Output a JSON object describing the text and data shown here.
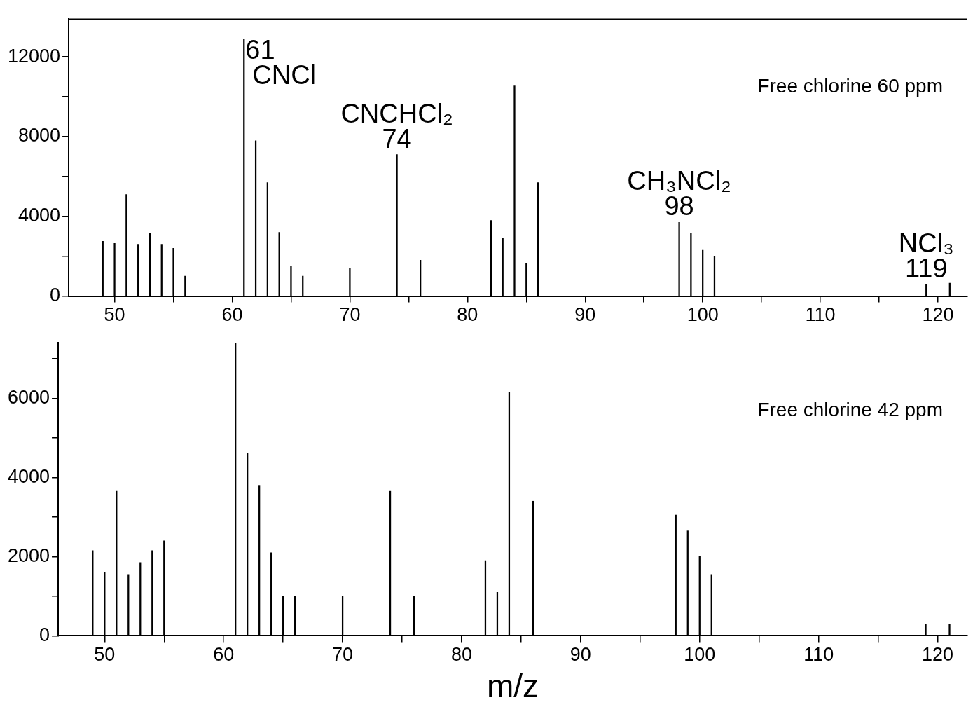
{
  "chart_data": [
    {
      "type": "bar",
      "xlim": [
        46.1,
        122.5
      ],
      "ylim": [
        0,
        13900
      ],
      "xticks": [
        50,
        {
          "value": 55,
          "label": null
        },
        60,
        {
          "value": 65,
          "label": null
        },
        70,
        {
          "value": 75,
          "label": null
        },
        80,
        {
          "value": 85,
          "label": null
        },
        90,
        {
          "value": 95,
          "label": null
        },
        100,
        {
          "value": 105,
          "label": null
        },
        110,
        {
          "value": 115,
          "label": null
        },
        120
      ],
      "yticks": [
        0,
        {
          "value": 2000,
          "label": null
        },
        4000,
        {
          "value": 6000,
          "label": null
        },
        8000,
        {
          "value": 10000,
          "label": null
        },
        12000
      ],
      "x": [
        49,
        50,
        51,
        52,
        53,
        54,
        55,
        56,
        61,
        62,
        63,
        64,
        65,
        66,
        70,
        74,
        76,
        82,
        83,
        84,
        85,
        86,
        98,
        99,
        100,
        101,
        119,
        121
      ],
      "series": [
        {
          "color": "#000000",
          "values": [
            2750,
            2650,
            5100,
            2600,
            3150,
            2600,
            2400,
            1000,
            12900,
            7800,
            5700,
            3200,
            1500,
            1000,
            1400,
            7100,
            1800,
            3800,
            2900,
            10550,
            1650,
            5700,
            3700,
            3150,
            2300,
            2000,
            600,
            650
          ]
        }
      ],
      "annotations": [
        "Free chlorine 60 ppm",
        {
          "text": "61\nCNCl",
          "x": 61,
          "y": 12900
        },
        {
          "text": "CNCHCl₂\n74",
          "x": 74,
          "y": 7100
        },
        {
          "text": "CH₃NCl₂\n98",
          "x": 98,
          "y": 3700
        },
        {
          "text": "NCl₃\n119",
          "x": 119,
          "y": 600
        }
      ]
    },
    {
      "type": "bar",
      "xlabel": "m/z",
      "xlim": [
        46.1,
        122.5
      ],
      "ylim": [
        0,
        7400
      ],
      "xticks": [
        50,
        {
          "value": 55,
          "label": null
        },
        60,
        {
          "value": 65,
          "label": null
        },
        70,
        {
          "value": 75,
          "label": null
        },
        80,
        {
          "value": 85,
          "label": null
        },
        90,
        {
          "value": 95,
          "label": null
        },
        100,
        {
          "value": 105,
          "label": null
        },
        110,
        {
          "value": 115,
          "label": null
        },
        120
      ],
      "yticks": [
        0,
        {
          "value": 1000,
          "label": null
        },
        2000,
        {
          "value": 3000,
          "label": null
        },
        4000,
        {
          "value": 5000,
          "label": null
        },
        6000,
        {
          "value": 7000,
          "label": null
        }
      ],
      "x": [
        49,
        50,
        51,
        52,
        53,
        54,
        55,
        61,
        62,
        63,
        64,
        65,
        66,
        70,
        74,
        76,
        82,
        83,
        84,
        86,
        98,
        99,
        100,
        101,
        119,
        121
      ],
      "series": [
        {
          "color": "#000000",
          "values": [
            2150,
            1600,
            3650,
            1550,
            1850,
            2150,
            2400,
            7400,
            4600,
            3800,
            2100,
            1000,
            1000,
            1000,
            3650,
            1000,
            1900,
            1100,
            6150,
            3400,
            3050,
            2650,
            2000,
            1550,
            300,
            300
          ]
        }
      ],
      "annotations": [
        "Free chlorine 42 ppm"
      ]
    }
  ]
}
